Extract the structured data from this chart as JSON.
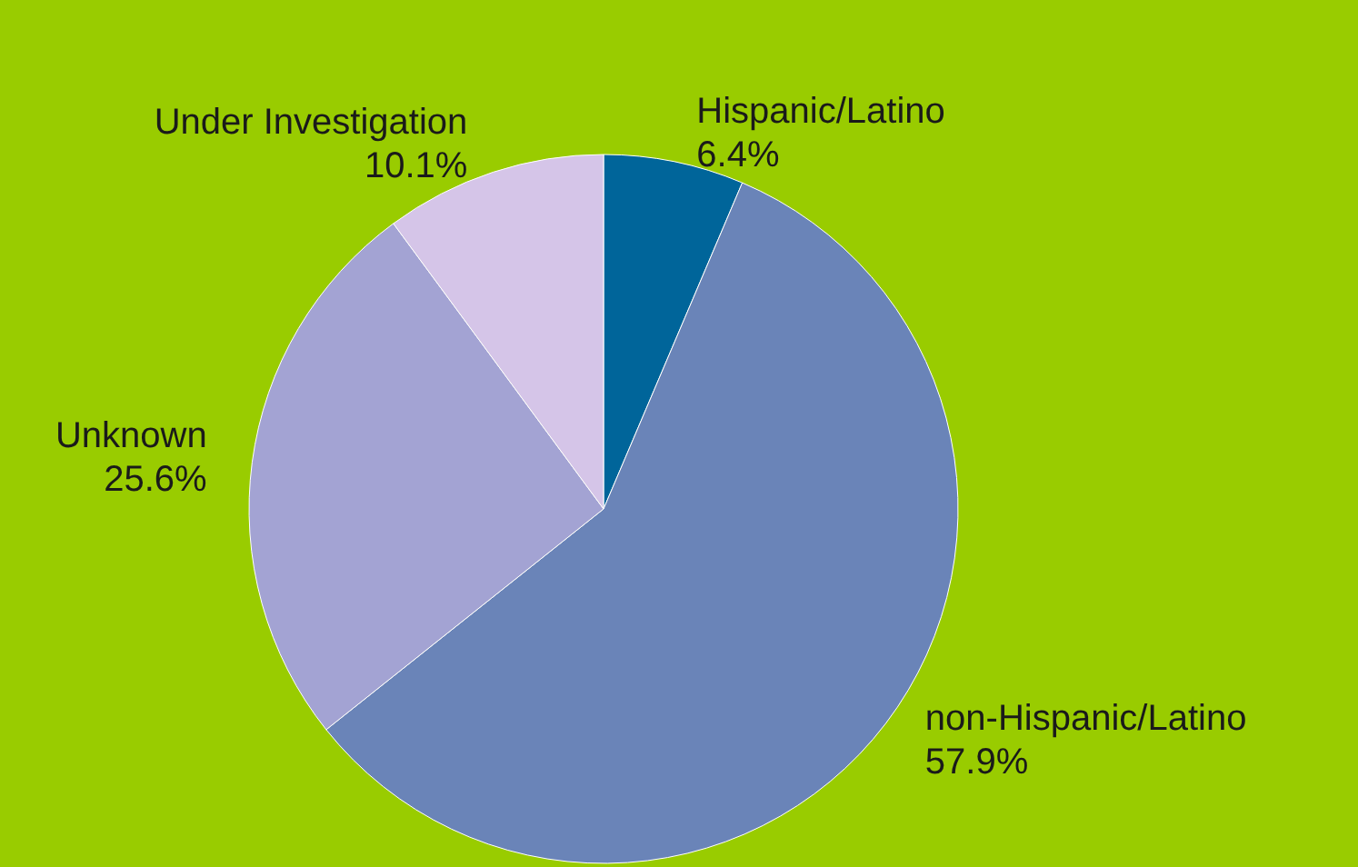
{
  "chart_data": {
    "type": "pie",
    "categories": [
      "Hispanic/Latino",
      "non-Hispanic/Latino",
      "Unknown",
      "Under Investigation"
    ],
    "values": [
      6.4,
      57.9,
      25.6,
      10.1
    ],
    "value_labels": [
      "6.4%",
      "57.9%",
      "25.6%",
      "10.1%"
    ],
    "colors": [
      "#00659a",
      "#6a84b8",
      "#a3a3d3",
      "#d5c5e8"
    ]
  }
}
